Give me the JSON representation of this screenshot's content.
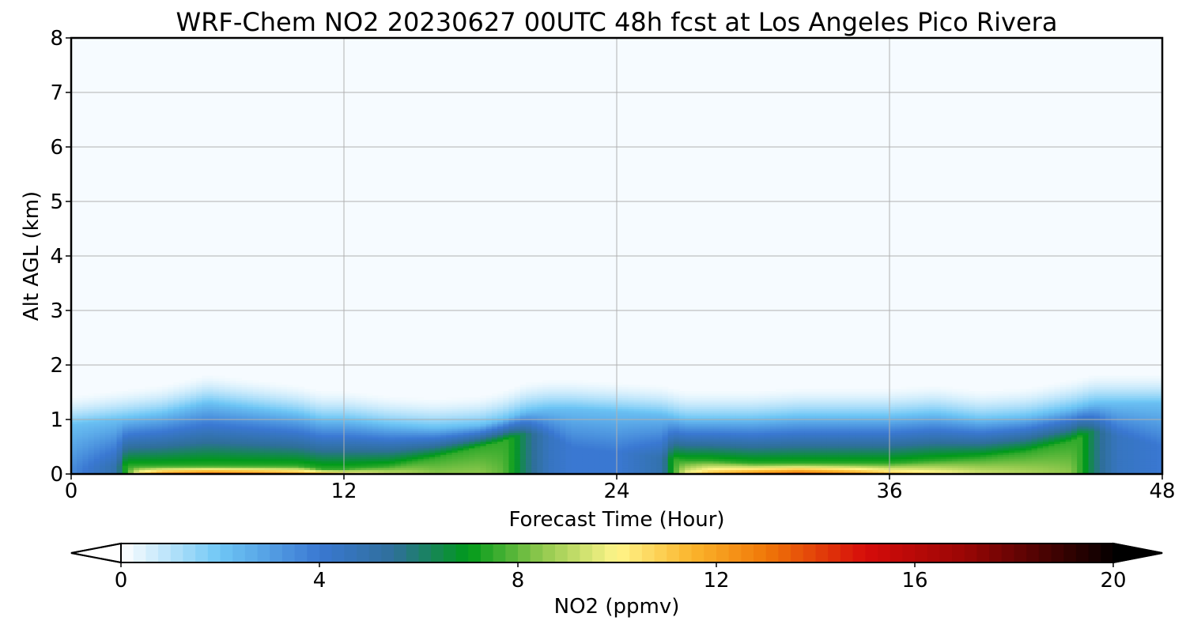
{
  "chart_data": {
    "type": "heatmap",
    "title": "WRF-Chem NO2  20230627 00UTC 48h fcst at Los Angeles Pico Rivera",
    "xlabel": "Forecast Time (Hour)",
    "ylabel": "Alt AGL (km)",
    "xlim": [
      0,
      48
    ],
    "ylim": [
      0,
      8
    ],
    "xticks": [
      "0",
      "12",
      "24",
      "36",
      "48"
    ],
    "yticks": [
      "0",
      "1",
      "2",
      "3",
      "4",
      "5",
      "6",
      "7",
      "8"
    ],
    "grid": true,
    "colorbar": {
      "label": "NO2  (ppmv)",
      "range": [
        0,
        20
      ],
      "ticks": [
        "0",
        "4",
        "8",
        "12",
        "16",
        "20"
      ],
      "extend": "both",
      "stops": [
        {
          "value": 0,
          "color": "#ffffff"
        },
        {
          "value": 2,
          "color": "#6ec6f5"
        },
        {
          "value": 4,
          "color": "#3a78d2"
        },
        {
          "value": 5.5,
          "color": "#2f6f9a"
        },
        {
          "value": 7,
          "color": "#009a1a"
        },
        {
          "value": 8.5,
          "color": "#92c94e"
        },
        {
          "value": 10,
          "color": "#fff58a"
        },
        {
          "value": 11.5,
          "color": "#fbb52c"
        },
        {
          "value": 13,
          "color": "#f07808"
        },
        {
          "value": 15,
          "color": "#d60c0a"
        },
        {
          "value": 17,
          "color": "#9a0605"
        },
        {
          "value": 20,
          "color": "#050000"
        }
      ]
    },
    "hours": [
      0,
      2,
      3,
      4,
      6,
      8,
      10,
      11,
      12,
      14,
      16,
      18,
      19,
      20,
      21,
      22,
      24,
      26,
      27,
      28,
      30,
      32,
      34,
      36,
      38,
      40,
      42,
      44,
      45,
      46,
      48
    ],
    "boundary_layer_top_km": [
      0.9,
      1.0,
      1.05,
      1.1,
      1.3,
      1.2,
      1.1,
      1.0,
      1.0,
      0.9,
      0.85,
      0.9,
      1.0,
      1.15,
      1.2,
      1.2,
      1.15,
      1.1,
      1.0,
      1.0,
      1.0,
      1.05,
      1.05,
      1.05,
      1.1,
      1.0,
      1.05,
      1.2,
      1.3,
      1.3,
      1.3
    ],
    "surface_max_ppmv": [
      3.5,
      5,
      11,
      13,
      14,
      13.5,
      12.5,
      12,
      11,
      9.5,
      8.5,
      8.5,
      8,
      6,
      4.5,
      4,
      4,
      5,
      10,
      11.5,
      13,
      14,
      13,
      11.5,
      10.5,
      9.5,
      9,
      8.5,
      6,
      4.5,
      4
    ],
    "peak_height_km": [
      0.1,
      0.15,
      0.15,
      0.15,
      0.15,
      0.15,
      0.15,
      0.1,
      0.1,
      0.15,
      0.3,
      0.5,
      0.6,
      0.75,
      0.7,
      0.5,
      0.4,
      0.3,
      0.25,
      0.25,
      0.2,
      0.2,
      0.2,
      0.2,
      0.25,
      0.3,
      0.4,
      0.6,
      0.8,
      0.7,
      0.5
    ]
  }
}
